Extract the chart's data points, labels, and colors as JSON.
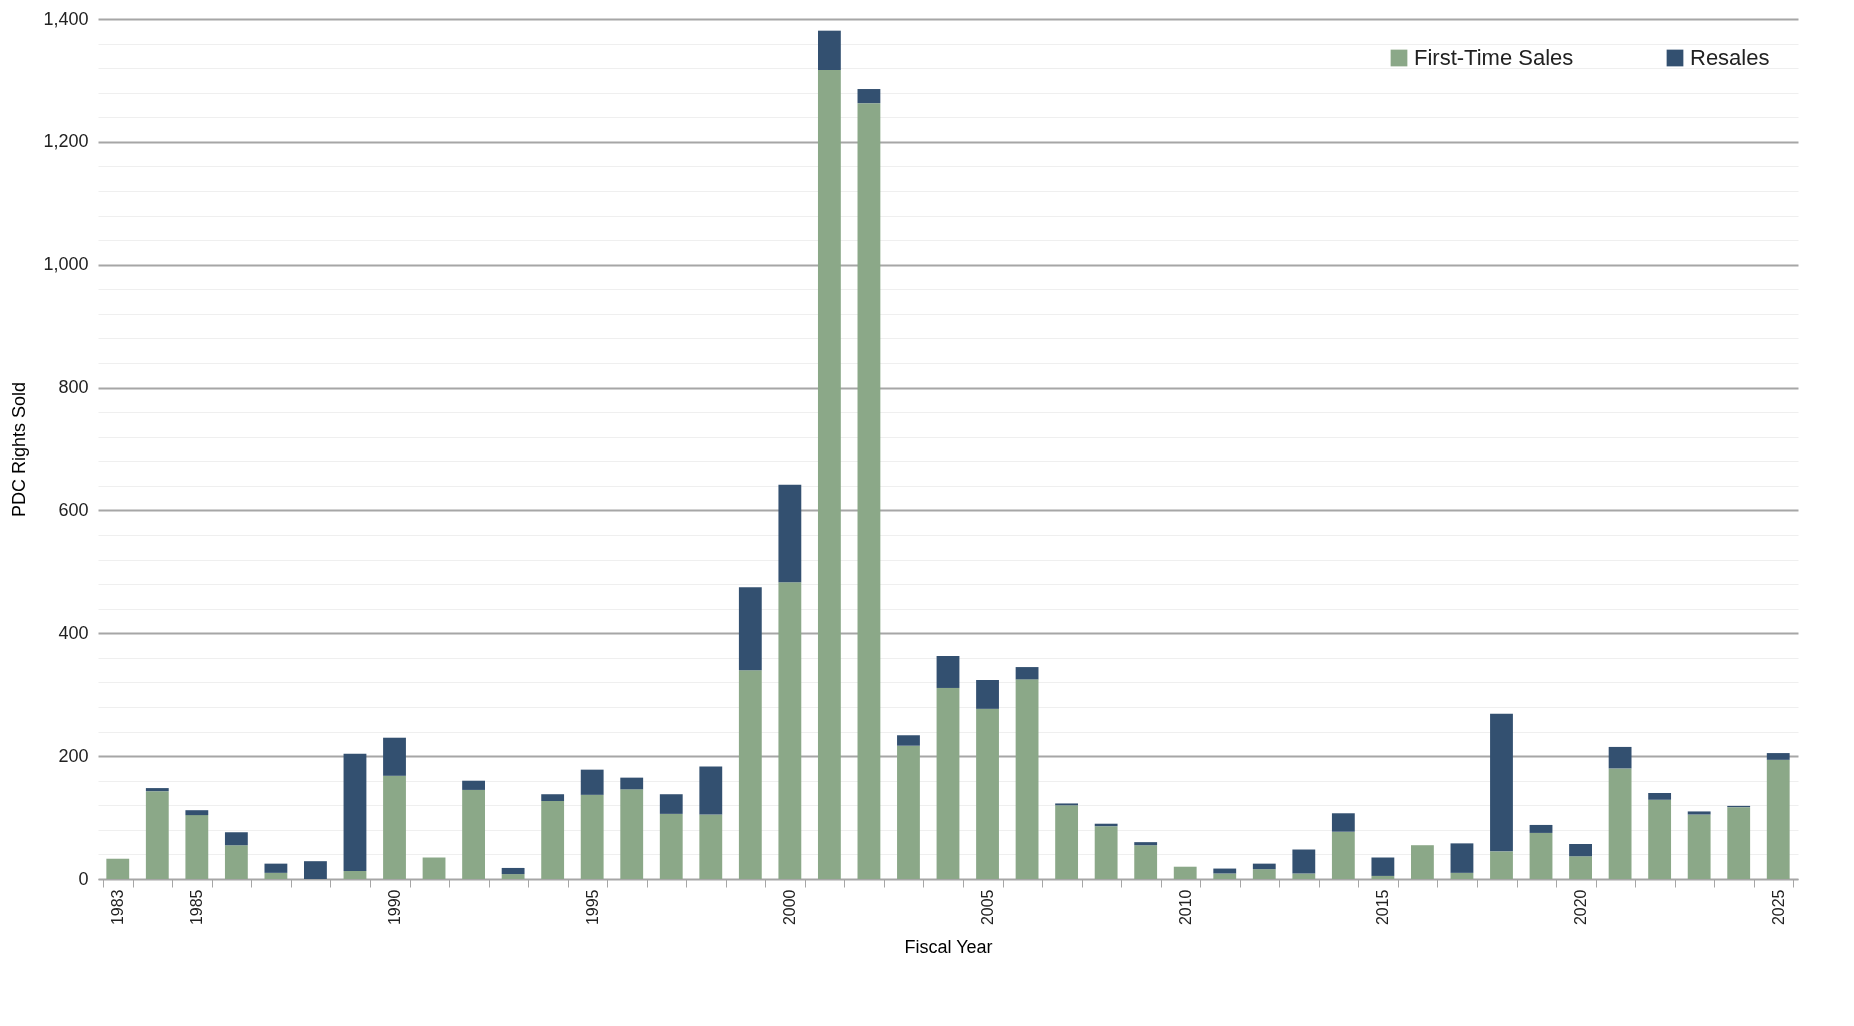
{
  "chart_data": {
    "type": "bar",
    "stacked": true,
    "xlabel": "Fiscal Year",
    "ylabel": "PDC Rights Sold",
    "categories": [
      "1983",
      null,
      "1985",
      null,
      null,
      null,
      null,
      "1990",
      null,
      null,
      null,
      null,
      "1995",
      null,
      null,
      null,
      null,
      "2000",
      null,
      null,
      null,
      null,
      "2005",
      null,
      null,
      null,
      null,
      "2010",
      null,
      null,
      null,
      null,
      "2015",
      null,
      null,
      null,
      null,
      "2020",
      null,
      null,
      null,
      null,
      "2025"
    ],
    "series": [
      {
        "name": "First-Time Sales",
        "color": "#8ba888",
        "values": [
          33,
          143,
          104,
          55,
          10,
          0,
          13,
          168,
          35,
          145,
          8,
          127,
          137,
          146,
          106,
          105,
          340,
          483,
          1317,
          1263,
          217,
          311,
          277,
          325,
          120,
          86,
          55,
          20,
          9,
          16,
          9,
          77,
          5,
          55,
          10,
          45,
          75,
          37,
          180,
          129,
          105,
          117,
          194
        ]
      },
      {
        "name": "Resales",
        "color": "#335070",
        "values": [
          0,
          5,
          8,
          21,
          15,
          29,
          191,
          62,
          0,
          15,
          10,
          11,
          41,
          19,
          32,
          78,
          135,
          159,
          64,
          23,
          17,
          52,
          47,
          20,
          3,
          4,
          5,
          0,
          8,
          9,
          39,
          30,
          30,
          null,
          48,
          224,
          13,
          20,
          35,
          11,
          5,
          2,
          11
        ]
      }
    ],
    "ylim": [
      0,
      1400
    ],
    "yticks": [
      0,
      {
        "value": 40,
        "label": null
      },
      {
        "value": 80,
        "label": null
      },
      {
        "value": 120,
        "label": null
      },
      {
        "value": 160,
        "label": null
      },
      {
        "value": 200,
        "label": "200"
      },
      {
        "value": 240,
        "label": null
      },
      {
        "value": 280,
        "label": null
      },
      {
        "value": 320,
        "label": null
      },
      {
        "value": 360,
        "label": null
      },
      {
        "value": 400,
        "label": "400"
      },
      {
        "value": 440,
        "label": null
      },
      {
        "value": 480,
        "label": null
      },
      {
        "value": 520,
        "label": null
      },
      {
        "value": 560,
        "label": null
      },
      {
        "value": 600,
        "label": "600"
      },
      {
        "value": 640,
        "label": null
      },
      {
        "value": 680,
        "label": null
      },
      {
        "value": 720,
        "label": null
      },
      {
        "value": 760,
        "label": null
      },
      {
        "value": 800,
        "label": "800"
      },
      {
        "value": 840,
        "label": null
      },
      {
        "value": 880,
        "label": null
      },
      {
        "value": 920,
        "label": null
      },
      {
        "value": 960,
        "label": null
      },
      {
        "value": 1000,
        "label": "1,000"
      },
      {
        "value": 1040,
        "label": null
      },
      {
        "value": 1080,
        "label": null
      },
      {
        "value": 1120,
        "label": null
      },
      {
        "value": 1160,
        "label": null
      },
      {
        "value": 1200,
        "label": "1,200"
      },
      {
        "value": 1240,
        "label": null
      },
      {
        "value": 1280,
        "label": null
      },
      {
        "value": 1320,
        "label": null
      },
      {
        "value": 1360,
        "label": null
      },
      {
        "value": 1400,
        "label": "1,400"
      }
    ],
    "grid": "y",
    "legend": "top right"
  }
}
